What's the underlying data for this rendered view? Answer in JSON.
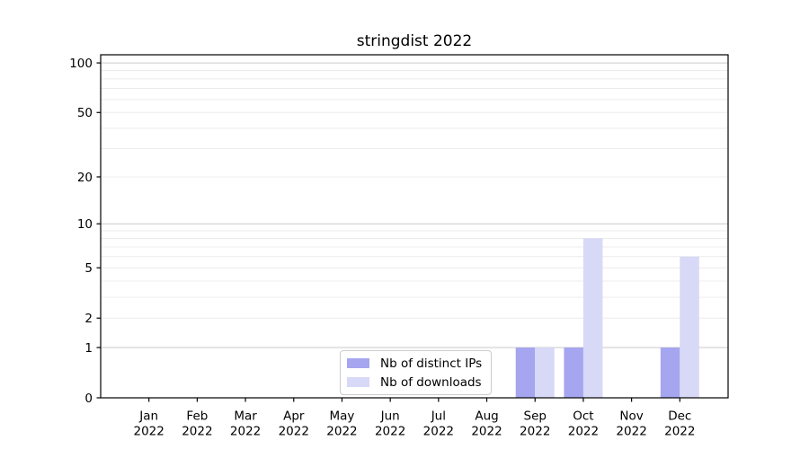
{
  "figure": {
    "background": "#ffffff"
  },
  "chart_data": {
    "type": "bar",
    "title": "stringdist 2022",
    "categories": [
      "Jan 2022",
      "Feb 2022",
      "Mar 2022",
      "Apr 2022",
      "May 2022",
      "Jun 2022",
      "Jul 2022",
      "Aug 2022",
      "Sep 2022",
      "Oct 2022",
      "Nov 2022",
      "Dec 2022"
    ],
    "series": [
      {
        "name": "Nb of distinct IPs",
        "color": "#a5a5f0",
        "values": [
          0,
          0,
          0,
          0,
          0,
          0,
          0,
          0,
          1,
          1,
          0,
          1
        ]
      },
      {
        "name": "Nb of downloads",
        "color": "#d8d8f7",
        "values": [
          0,
          0,
          0,
          0,
          0,
          0,
          0,
          0,
          1,
          8,
          0,
          6
        ]
      }
    ],
    "xlabel": "",
    "ylabel": "",
    "yscale": "log1p",
    "ylim": [
      0,
      112
    ],
    "yticks": [
      0,
      1,
      2,
      5,
      10,
      20,
      50,
      100
    ],
    "grid": {
      "horizontal": true,
      "major_values": [
        1,
        10,
        100
      ],
      "minor_values": [
        2,
        3,
        4,
        5,
        6,
        7,
        8,
        9,
        20,
        30,
        40,
        50,
        60,
        70,
        80,
        90
      ],
      "major_color": "#c9c9c9",
      "minor_color": "#ececec"
    },
    "legend_position": "inside-bottom-center"
  }
}
